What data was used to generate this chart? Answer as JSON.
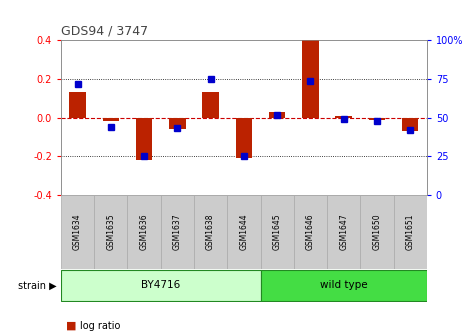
{
  "title": "GDS94 / 3747",
  "samples": [
    "GSM1634",
    "GSM1635",
    "GSM1636",
    "GSM1637",
    "GSM1638",
    "GSM1644",
    "GSM1645",
    "GSM1646",
    "GSM1647",
    "GSM1650",
    "GSM1651"
  ],
  "log_ratio": [
    0.13,
    -0.02,
    -0.22,
    -0.06,
    0.13,
    -0.21,
    0.03,
    0.4,
    0.01,
    -0.01,
    -0.07
  ],
  "percentile_rank": [
    72,
    44,
    25,
    43,
    75,
    25,
    52,
    74,
    49,
    48,
    42
  ],
  "groups": [
    {
      "label": "BY4716",
      "start": 0,
      "end": 6,
      "color": "#ccffcc"
    },
    {
      "label": "wild type",
      "start": 6,
      "end": 11,
      "color": "#44dd44"
    }
  ],
  "strain_label": "strain",
  "ylim_left": [
    -0.4,
    0.4
  ],
  "ylim_right": [
    0,
    100
  ],
  "yticks_left": [
    -0.4,
    -0.2,
    0.0,
    0.2,
    0.4
  ],
  "yticks_right": [
    0,
    25,
    50,
    75,
    100
  ],
  "bar_color": "#bb2200",
  "dot_color": "#0000cc",
  "zero_line_color": "#cc0000",
  "grid_color": "#000000",
  "bg_color": "#ffffff",
  "plot_bg": "#ffffff",
  "title_color": "#444444",
  "label_bg": "#cccccc",
  "label_border": "#aaaaaa"
}
